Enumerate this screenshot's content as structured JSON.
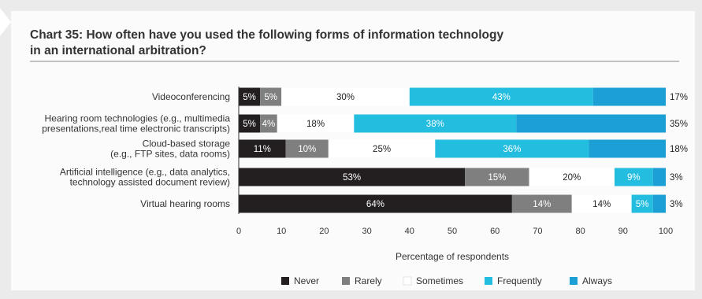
{
  "title_line1": "Chart 35: How often have you used the following forms of information technology",
  "title_line2": "in an international arbitration?",
  "chart_data": {
    "type": "bar",
    "orientation": "horizontal",
    "stacked": true,
    "categories": [
      [
        "Videoconferencing"
      ],
      [
        "Hearing room technologies (e.g., multimedia",
        "presentations,real time electronic transcripts)"
      ],
      [
        "Cloud-based storage",
        "(e.g., FTP sites, data rooms)"
      ],
      [
        "Artificial intelligence (e.g., data analytics,",
        "technology assisted document review)"
      ],
      [
        "Virtual hearing rooms"
      ]
    ],
    "series": [
      {
        "name": "Never",
        "color": "#231f20",
        "label_color": "#ffffff",
        "values": [
          5,
          5,
          11,
          53,
          64
        ]
      },
      {
        "name": "Rarely",
        "color": "#7f7f7f",
        "label_color": "#ffffff",
        "values": [
          5,
          4,
          10,
          15,
          14
        ]
      },
      {
        "name": "Sometimes",
        "color": "#ffffff",
        "label_color": "#231f20",
        "values": [
          30,
          18,
          25,
          20,
          14
        ]
      },
      {
        "name": "Frequently",
        "color": "#22bddf",
        "label_color": "#ffffff",
        "values": [
          43,
          38,
          36,
          9,
          5
        ]
      },
      {
        "name": "Always",
        "color": "#1b9fd4",
        "label_color": "#231f20",
        "values": [
          17,
          35,
          18,
          3,
          3
        ]
      }
    ],
    "x_ticks": [
      0,
      10,
      20,
      30,
      40,
      50,
      60,
      70,
      80,
      90,
      100
    ],
    "xlim": [
      0,
      100
    ],
    "xlabel": "Percentage of respondents",
    "legend_position": "bottom",
    "grid": false
  }
}
